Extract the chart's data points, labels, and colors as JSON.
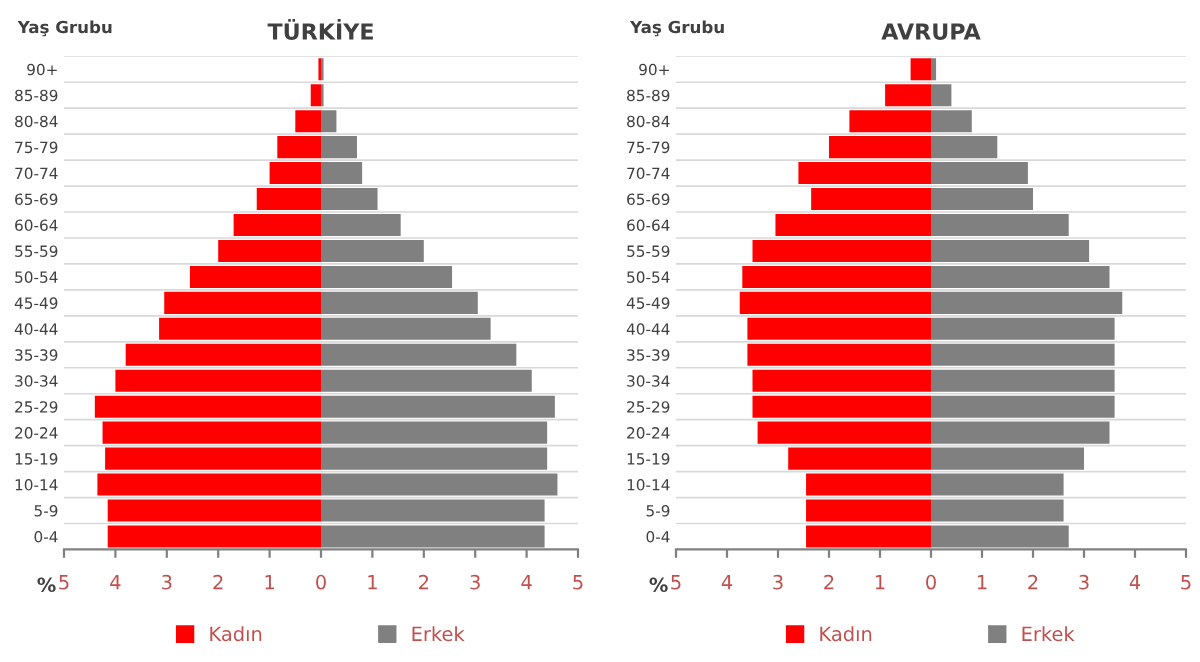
{
  "chart_data": [
    {
      "type": "bar",
      "orientation": "horizontal",
      "stacked": true,
      "title": "TÜRKİYE",
      "ylabel": "Yaş Grubu",
      "xlabel": "%",
      "categories": [
        "90+",
        "85-89",
        "80-84",
        "75-79",
        "70-74",
        "65-69",
        "60-64",
        "55-59",
        "50-54",
        "45-49",
        "40-44",
        "35-39",
        "30-34",
        "25-29",
        "20-24",
        "15-19",
        "10-14",
        "5-9",
        "0-4"
      ],
      "series": [
        {
          "name": "Kadın",
          "color": "#ff0000",
          "values": [
            -0.05,
            -0.2,
            -0.5,
            -0.85,
            -1.0,
            -1.25,
            -1.7,
            -2.0,
            -2.55,
            -3.05,
            -3.15,
            -3.8,
            -4.0,
            -4.4,
            -4.25,
            -4.2,
            -4.35,
            -4.15,
            -4.15
          ]
        },
        {
          "name": "Erkek",
          "color": "#808080",
          "values": [
            0.05,
            0.05,
            0.3,
            0.7,
            0.8,
            1.1,
            1.55,
            2.0,
            2.55,
            3.05,
            3.3,
            3.8,
            4.1,
            4.55,
            4.4,
            4.4,
            4.6,
            4.35,
            4.35
          ]
        }
      ],
      "xlim": [
        -5,
        5
      ],
      "xticks": [
        {
          "value": -5,
          "label": "5"
        },
        {
          "value": -4,
          "label": "4"
        },
        {
          "value": -3,
          "label": "3"
        },
        {
          "value": -2,
          "label": "2"
        },
        {
          "value": -1,
          "label": "1"
        },
        0,
        1,
        2,
        3,
        4,
        5
      ],
      "grid": "y",
      "legend": "bottom"
    },
    {
      "type": "bar",
      "orientation": "horizontal",
      "stacked": true,
      "title": "AVRUPA",
      "ylabel": "Yaş Grubu",
      "xlabel": "%",
      "categories": [
        "90+",
        "85-89",
        "80-84",
        "75-79",
        "70-74",
        "65-69",
        "60-64",
        "55-59",
        "50-54",
        "45-49",
        "40-44",
        "35-39",
        "30-34",
        "25-29",
        "20-24",
        "15-19",
        "10-14",
        "5-9",
        "0-4"
      ],
      "series": [
        {
          "name": "Kadın",
          "color": "#ff0000",
          "values": [
            -0.4,
            -0.9,
            -1.6,
            -2.0,
            -2.6,
            -2.35,
            -3.05,
            -3.5,
            -3.7,
            -3.75,
            -3.6,
            -3.6,
            -3.5,
            -3.5,
            -3.4,
            -2.8,
            -2.45,
            -2.45,
            -2.45
          ]
        },
        {
          "name": "Erkek",
          "color": "#808080",
          "values": [
            0.1,
            0.4,
            0.8,
            1.3,
            1.9,
            2.0,
            2.7,
            3.1,
            3.5,
            3.75,
            3.6,
            3.6,
            3.6,
            3.6,
            3.5,
            3.0,
            2.6,
            2.6,
            2.7
          ]
        }
      ],
      "xlim": [
        -5,
        5
      ],
      "xticks": [
        {
          "value": -5,
          "label": "5"
        },
        {
          "value": -4,
          "label": "4"
        },
        {
          "value": -3,
          "label": "3"
        },
        {
          "value": -2,
          "label": "2"
        },
        {
          "value": -1,
          "label": "1"
        },
        0,
        1,
        2,
        3,
        4,
        5
      ],
      "grid": "y",
      "legend": "bottom"
    }
  ]
}
